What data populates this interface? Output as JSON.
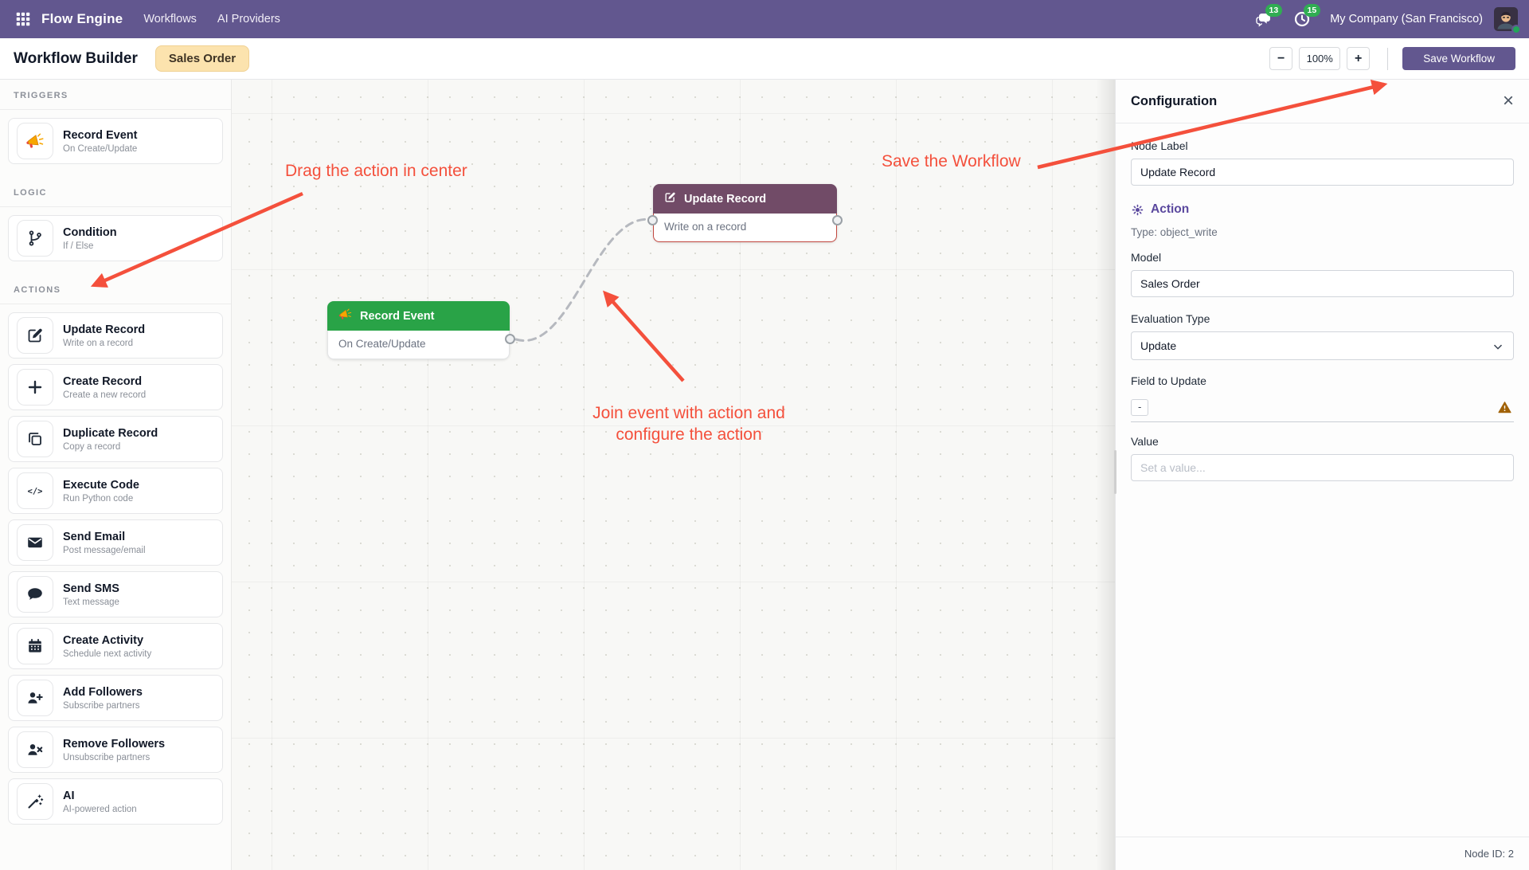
{
  "navbar": {
    "app_name": "Flow Engine",
    "menus": [
      {
        "label": "Workflows"
      },
      {
        "label": "AI Providers"
      }
    ],
    "messages_count": "13",
    "activities_count": "15",
    "company": "My Company (San Francisco)"
  },
  "toolbar": {
    "title": "Workflow Builder",
    "badge": "Sales Order",
    "zoom_out": "−",
    "zoom_level": "100%",
    "zoom_in": "+",
    "save_label": "Save Workflow"
  },
  "sidebar": {
    "sections": [
      {
        "title": "TRIGGERS",
        "items": [
          {
            "icon": "megaphone-icon",
            "title": "Record Event",
            "subtitle": "On Create/Update"
          }
        ]
      },
      {
        "title": "LOGIC",
        "items": [
          {
            "icon": "branch-icon",
            "title": "Condition",
            "subtitle": "If / Else"
          }
        ]
      },
      {
        "title": "ACTIONS",
        "items": [
          {
            "icon": "edit-icon",
            "title": "Update Record",
            "subtitle": "Write on a record"
          },
          {
            "icon": "plus-icon",
            "title": "Create Record",
            "subtitle": "Create a new record"
          },
          {
            "icon": "duplicate-icon",
            "title": "Duplicate Record",
            "subtitle": "Copy a record"
          },
          {
            "icon": "code-icon",
            "title": "Execute Code",
            "subtitle": "Run Python code"
          },
          {
            "icon": "email-icon",
            "title": "Send Email",
            "subtitle": "Post message/email"
          },
          {
            "icon": "sms-icon",
            "title": "Send SMS",
            "subtitle": "Text message"
          },
          {
            "icon": "calendar-icon",
            "title": "Create Activity",
            "subtitle": "Schedule next activity"
          },
          {
            "icon": "add-follower-icon",
            "title": "Add Followers",
            "subtitle": "Subscribe partners"
          },
          {
            "icon": "remove-follower-icon",
            "title": "Remove Followers",
            "subtitle": "Unsubscribe partners"
          },
          {
            "icon": "wand-icon",
            "title": "AI",
            "subtitle": "AI-powered action"
          }
        ]
      }
    ]
  },
  "canvas": {
    "nodes": [
      {
        "title": "Record Event",
        "subtitle": "On Create/Update",
        "header_color": "#29a347",
        "icon": "megaphone-icon"
      },
      {
        "title": "Update Record",
        "subtitle": "Write on a record",
        "header_color": "#714b67",
        "icon": "edit-icon"
      }
    ],
    "annotations": [
      {
        "text": "Drag the action in center"
      },
      {
        "text": "Save the Workflow"
      },
      {
        "text": "Join event with action and configure the action"
      }
    ],
    "annotation_color": "#f4503c"
  },
  "panel": {
    "title": "Configuration",
    "close_label": "×",
    "node_label": {
      "label": "Node Label",
      "value": "Update Record"
    },
    "action_section": "Action",
    "type_line": "Type: object_write",
    "model": {
      "label": "Model",
      "value": "Sales Order"
    },
    "evaluation": {
      "label": "Evaluation Type",
      "value": "Update"
    },
    "field_to_update": {
      "label": "Field to Update",
      "value": "-"
    },
    "value_field": {
      "label": "Value",
      "placeholder": "Set a value..."
    },
    "footer": "Node ID: 2"
  }
}
